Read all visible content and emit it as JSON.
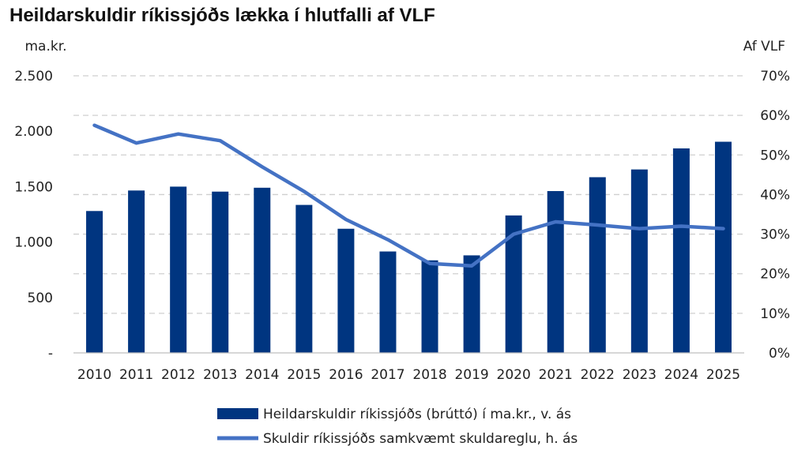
{
  "chart_data": {
    "type": "bar",
    "title": "Heildarskuldir ríkissjóðs lækka í hlutfalli af VLF",
    "left_axis_unit": "ma.kr.",
    "right_axis_unit": "Af VLF",
    "categories": [
      "2010",
      "2011",
      "2012",
      "2013",
      "2014",
      "2015",
      "2016",
      "2017",
      "2018",
      "2019",
      "2020",
      "2021",
      "2022",
      "2023",
      "2024",
      "2025"
    ],
    "left_ticks": [
      "-",
      "500",
      "1.000",
      "1.500",
      "2.000",
      "2.500"
    ],
    "right_ticks": [
      "0%",
      "10%",
      "20%",
      "30%",
      "40%",
      "50%",
      "60%",
      "70%"
    ],
    "ylim_left": [
      0,
      2500
    ],
    "ylim_right": [
      0,
      70
    ],
    "grid": true,
    "legend_position": "bottom",
    "series": [
      {
        "name": "Heildarskuldir ríkissjóðs (brúttó) í ma.kr., v. ás",
        "type": "bar",
        "axis": "left",
        "color": "#003580",
        "values": [
          1280,
          1465,
          1500,
          1455,
          1490,
          1335,
          1120,
          915,
          835,
          880,
          1240,
          1460,
          1585,
          1655,
          1845,
          1905
        ]
      },
      {
        "name": "Skuldir ríkissjóðs samkvæmt skuldareglu, h. ás",
        "type": "line",
        "axis": "right",
        "color": "#4472C4",
        "values": [
          57.5,
          53,
          55.3,
          53.6,
          47,
          40.8,
          33.7,
          28.6,
          22.6,
          22,
          30,
          33.1,
          32.3,
          31.4,
          32,
          31.4
        ]
      }
    ]
  }
}
